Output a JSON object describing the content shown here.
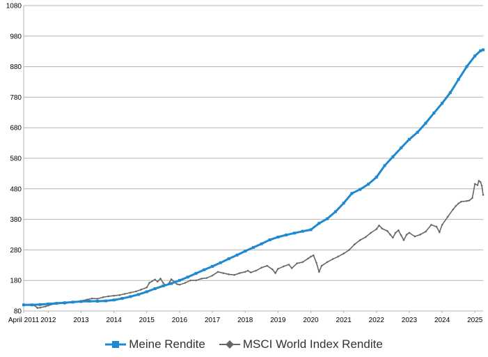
{
  "chart_data": {
    "type": "line",
    "title": "",
    "xlabel": "",
    "ylabel": "",
    "ylim": [
      80,
      1080
    ],
    "yticks": [
      80,
      180,
      280,
      380,
      480,
      580,
      680,
      780,
      880,
      980,
      1080
    ],
    "xlim": [
      2011.25,
      2025.25
    ],
    "x_tick_labels": [
      {
        "x": 2011.25,
        "label": "April 2011"
      },
      {
        "x": 2012.0,
        "label": "2012"
      },
      {
        "x": 2013.0,
        "label": "2013"
      },
      {
        "x": 2014.0,
        "label": "2014"
      },
      {
        "x": 2015.0,
        "label": "2015"
      },
      {
        "x": 2016.0,
        "label": "2016"
      },
      {
        "x": 2017.0,
        "label": "2017"
      },
      {
        "x": 2018.0,
        "label": "2018"
      },
      {
        "x": 2019.0,
        "label": "2019"
      },
      {
        "x": 2020.0,
        "label": "2020"
      },
      {
        "x": 2021.0,
        "label": "2021"
      },
      {
        "x": 2022.0,
        "label": "2022"
      },
      {
        "x": 2023.0,
        "label": "2023"
      },
      {
        "x": 2024.0,
        "label": "2024"
      },
      {
        "x": 2025.0,
        "label": "2025"
      }
    ],
    "grid": true,
    "legend_position": "bottom",
    "series": [
      {
        "name": "Meine Rendite",
        "color": "#1E88D0",
        "marker": "square",
        "points": [
          [
            2011.25,
            100
          ],
          [
            2011.5,
            100
          ],
          [
            2011.75,
            101
          ],
          [
            2012.0,
            103
          ],
          [
            2012.25,
            105
          ],
          [
            2012.5,
            107
          ],
          [
            2012.75,
            109
          ],
          [
            2013.0,
            111
          ],
          [
            2013.25,
            112
          ],
          [
            2013.5,
            112
          ],
          [
            2013.75,
            113
          ],
          [
            2014.0,
            116
          ],
          [
            2014.25,
            121
          ],
          [
            2014.5,
            127
          ],
          [
            2014.75,
            134
          ],
          [
            2015.0,
            143
          ],
          [
            2015.25,
            153
          ],
          [
            2015.5,
            162
          ],
          [
            2015.75,
            170
          ],
          [
            2016.0,
            180
          ],
          [
            2016.25,
            191
          ],
          [
            2016.5,
            203
          ],
          [
            2016.75,
            215
          ],
          [
            2017.0,
            226
          ],
          [
            2017.25,
            238
          ],
          [
            2017.5,
            251
          ],
          [
            2017.75,
            263
          ],
          [
            2018.0,
            276
          ],
          [
            2018.25,
            288
          ],
          [
            2018.5,
            300
          ],
          [
            2018.75,
            313
          ],
          [
            2019.0,
            322
          ],
          [
            2019.25,
            329
          ],
          [
            2019.5,
            335
          ],
          [
            2019.75,
            341
          ],
          [
            2020.0,
            346
          ],
          [
            2020.25,
            367
          ],
          [
            2020.5,
            382
          ],
          [
            2020.75,
            405
          ],
          [
            2021.0,
            433
          ],
          [
            2021.25,
            465
          ],
          [
            2021.5,
            478
          ],
          [
            2021.75,
            495
          ],
          [
            2022.0,
            518
          ],
          [
            2022.25,
            556
          ],
          [
            2022.5,
            585
          ],
          [
            2022.75,
            614
          ],
          [
            2023.0,
            642
          ],
          [
            2023.25,
            665
          ],
          [
            2023.5,
            695
          ],
          [
            2023.75,
            728
          ],
          [
            2024.0,
            760
          ],
          [
            2024.25,
            795
          ],
          [
            2024.5,
            838
          ],
          [
            2024.75,
            880
          ],
          [
            2025.0,
            915
          ],
          [
            2025.17,
            932
          ],
          [
            2025.25,
            935
          ]
        ]
      },
      {
        "name": "MSCI World Index Rendite",
        "color": "#666666",
        "marker": "diamond",
        "points": [
          [
            2011.25,
            100
          ],
          [
            2011.42,
            101
          ],
          [
            2011.58,
            98
          ],
          [
            2011.67,
            90
          ],
          [
            2011.75,
            91
          ],
          [
            2011.92,
            95
          ],
          [
            2012.0,
            98
          ],
          [
            2012.17,
            103
          ],
          [
            2012.33,
            105
          ],
          [
            2012.5,
            104
          ],
          [
            2012.67,
            108
          ],
          [
            2012.83,
            110
          ],
          [
            2013.0,
            113
          ],
          [
            2013.17,
            117
          ],
          [
            2013.33,
            121
          ],
          [
            2013.5,
            120
          ],
          [
            2013.67,
            125
          ],
          [
            2013.83,
            128
          ],
          [
            2014.0,
            130
          ],
          [
            2014.17,
            132
          ],
          [
            2014.33,
            136
          ],
          [
            2014.5,
            140
          ],
          [
            2014.67,
            144
          ],
          [
            2014.83,
            150
          ],
          [
            2015.0,
            157
          ],
          [
            2015.08,
            172
          ],
          [
            2015.17,
            178
          ],
          [
            2015.25,
            183
          ],
          [
            2015.33,
            176
          ],
          [
            2015.42,
            186
          ],
          [
            2015.5,
            172
          ],
          [
            2015.58,
            164
          ],
          [
            2015.67,
            170
          ],
          [
            2015.75,
            184
          ],
          [
            2015.83,
            176
          ],
          [
            2015.92,
            168
          ],
          [
            2016.0,
            166
          ],
          [
            2016.17,
            172
          ],
          [
            2016.33,
            180
          ],
          [
            2016.5,
            180
          ],
          [
            2016.67,
            186
          ],
          [
            2016.83,
            188
          ],
          [
            2017.0,
            196
          ],
          [
            2017.17,
            208
          ],
          [
            2017.33,
            204
          ],
          [
            2017.5,
            200
          ],
          [
            2017.67,
            198
          ],
          [
            2017.83,
            204
          ],
          [
            2018.0,
            208
          ],
          [
            2018.08,
            212
          ],
          [
            2018.17,
            206
          ],
          [
            2018.33,
            212
          ],
          [
            2018.5,
            222
          ],
          [
            2018.67,
            228
          ],
          [
            2018.83,
            216
          ],
          [
            2018.92,
            204
          ],
          [
            2019.0,
            218
          ],
          [
            2019.17,
            226
          ],
          [
            2019.33,
            232
          ],
          [
            2019.42,
            220
          ],
          [
            2019.58,
            236
          ],
          [
            2019.75,
            240
          ],
          [
            2019.92,
            252
          ],
          [
            2020.0,
            258
          ],
          [
            2020.08,
            262
          ],
          [
            2020.17,
            238
          ],
          [
            2020.25,
            208
          ],
          [
            2020.33,
            228
          ],
          [
            2020.5,
            240
          ],
          [
            2020.67,
            250
          ],
          [
            2020.83,
            258
          ],
          [
            2021.0,
            268
          ],
          [
            2021.17,
            280
          ],
          [
            2021.33,
            298
          ],
          [
            2021.5,
            312
          ],
          [
            2021.67,
            322
          ],
          [
            2021.83,
            336
          ],
          [
            2022.0,
            348
          ],
          [
            2022.08,
            360
          ],
          [
            2022.17,
            350
          ],
          [
            2022.33,
            342
          ],
          [
            2022.42,
            330
          ],
          [
            2022.5,
            320
          ],
          [
            2022.58,
            336
          ],
          [
            2022.67,
            344
          ],
          [
            2022.75,
            328
          ],
          [
            2022.83,
            312
          ],
          [
            2022.92,
            330
          ],
          [
            2023.0,
            336
          ],
          [
            2023.17,
            324
          ],
          [
            2023.33,
            330
          ],
          [
            2023.5,
            340
          ],
          [
            2023.67,
            362
          ],
          [
            2023.83,
            356
          ],
          [
            2023.92,
            338
          ],
          [
            2024.0,
            362
          ],
          [
            2024.17,
            388
          ],
          [
            2024.33,
            412
          ],
          [
            2024.42,
            424
          ],
          [
            2024.5,
            432
          ],
          [
            2024.58,
            438
          ],
          [
            2024.75,
            440
          ],
          [
            2024.83,
            442
          ],
          [
            2024.92,
            450
          ],
          [
            2025.0,
            496
          ],
          [
            2025.08,
            492
          ],
          [
            2025.12,
            506
          ],
          [
            2025.17,
            502
          ],
          [
            2025.21,
            490
          ],
          [
            2025.25,
            460
          ]
        ]
      }
    ]
  }
}
